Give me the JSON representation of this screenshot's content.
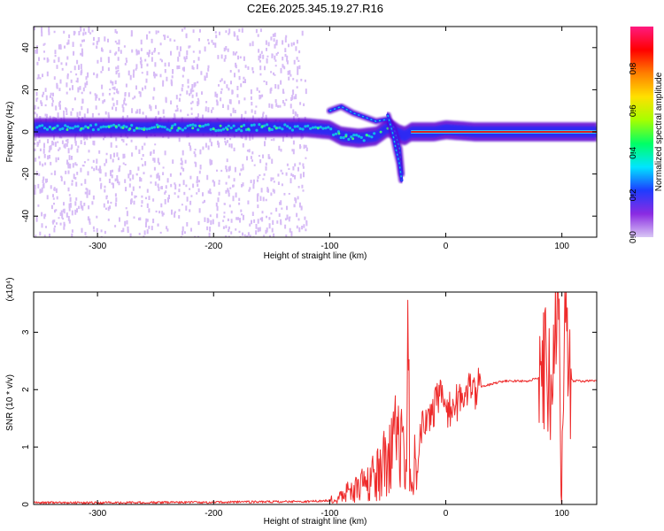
{
  "title": "C2E6.2025.345.19.27.R16",
  "colors": {
    "spectrum_core": "#12c7e6",
    "spectrum_mid": "#2b2bf5",
    "spectrum_edge": "#5b00d0",
    "spectrum_scatter": "#b785ee",
    "tone_peak": "#e02020",
    "snr_line": "#ee2b2b"
  },
  "colorbar": {
    "label": "Normalized spectral amplitude",
    "ticks": [
      "0.0",
      "0.2",
      "0.4",
      "0.6",
      "0.8"
    ],
    "tick_values": [
      0.0,
      0.2,
      0.4,
      0.6,
      0.8
    ],
    "range": [
      0,
      1
    ],
    "colors": [
      "#d9c7f5",
      "#8a2be2",
      "#1e3cff",
      "#00e5ff",
      "#00ff66",
      "#a6ff00",
      "#ffe000",
      "#ff7f00",
      "#ff0000",
      "#ff1a80"
    ]
  },
  "chart_data": [
    {
      "type": "heatmap",
      "title": "C2E6.2025.345.19.27.R16",
      "xlabel": "Height of straight line (km)",
      "ylabel": "Frequency (Hz)",
      "xlim": [
        -355,
        130
      ],
      "ylim": [
        -50,
        50
      ],
      "x_ticks": [
        -300,
        -200,
        -100,
        0,
        100
      ],
      "x_tick_labels": [
        "-300",
        "-200",
        "-100",
        "0",
        "100"
      ],
      "y_ticks": [
        -40,
        -20,
        0,
        20,
        40
      ],
      "y_tick_labels": [
        "-40",
        "-20",
        "0",
        "20",
        "40"
      ],
      "ridge": {
        "x": [
          -355,
          -300,
          -250,
          -200,
          -150,
          -120,
          -100,
          -90,
          -75,
          -60,
          -50,
          -45,
          -40,
          -35,
          -30,
          -20,
          -10,
          0,
          25,
          50,
          75,
          100,
          130
        ],
        "y": [
          2,
          2,
          2,
          2,
          2,
          2,
          1,
          -2,
          -3,
          -2,
          2,
          1,
          -1,
          -2,
          0,
          0,
          0,
          1,
          0,
          0,
          0,
          0,
          0
        ]
      },
      "branches": [
        {
          "x": [
            -100,
            -90,
            -80,
            -70,
            -60,
            -50,
            -45,
            -40,
            -38
          ],
          "y": [
            10,
            12,
            9,
            7,
            5,
            6,
            2,
            -8,
            -20
          ]
        },
        {
          "x": [
            -50,
            -46,
            -43,
            -40,
            -38
          ],
          "y": [
            8,
            0,
            -8,
            -15,
            -23
          ]
        }
      ]
    },
    {
      "type": "line",
      "xlabel": "Height of straight line (km)",
      "ylabel": "SNR (10 * v/v)",
      "y_multiplier": "(x10⁴)",
      "xlim": [
        -355,
        130
      ],
      "ylim": [
        0,
        3.7
      ],
      "x_ticks": [
        -300,
        -200,
        -100,
        0,
        100
      ],
      "x_tick_labels": [
        "-300",
        "-200",
        "-100",
        "0",
        "100"
      ],
      "y_ticks": [
        0,
        1,
        2,
        3
      ],
      "y_tick_labels": [
        "0",
        "1",
        "2",
        "3"
      ],
      "series": [
        {
          "x": [
            -355,
            -300,
            -200,
            -120,
            -100,
            -90,
            -80,
            -70,
            -60,
            -50,
            -45,
            -40,
            -35,
            -32,
            -30,
            -25,
            -20,
            -15,
            -10,
            -5,
            0,
            10,
            20,
            30,
            40,
            50,
            60,
            70,
            80,
            85,
            90,
            95,
            97,
            100,
            102,
            105,
            110,
            120,
            130
          ],
          "y": [
            0.03,
            0.03,
            0.04,
            0.05,
            0.07,
            0.15,
            0.25,
            0.35,
            0.5,
            0.8,
            1.0,
            1.2,
            1.5,
            2.0,
            0.4,
            0.8,
            1.4,
            1.5,
            1.7,
            1.9,
            1.6,
            1.8,
            1.95,
            2.05,
            2.1,
            2.15,
            2.15,
            2.15,
            2.2,
            2.25,
            2.2,
            2.7,
            3.3,
            0.1,
            3.6,
            2.2,
            2.15,
            2.15,
            2.15
          ]
        }
      ]
    }
  ]
}
